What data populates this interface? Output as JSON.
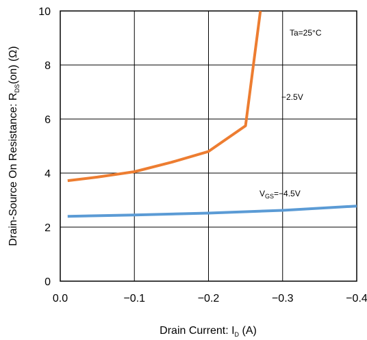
{
  "chart_data": {
    "type": "line",
    "xlabel": {
      "main": "Drain Current: I",
      "sub": "D",
      "unit": " (A)"
    },
    "ylabel": {
      "main": "Drain-Source On Resistance: R",
      "sub": "DS",
      "unit": "(on) (Ω)"
    },
    "xlim": [
      0,
      -0.4
    ],
    "ylim": [
      0,
      10
    ],
    "x_ticks": [
      0,
      -0.1,
      -0.2,
      -0.3,
      -0.4
    ],
    "x_tick_labels": [
      "0.0",
      "−0.1",
      "−0.2",
      "−0.3",
      "−0.4"
    ],
    "y_ticks": [
      0,
      2,
      4,
      6,
      8,
      10
    ],
    "y_tick_labels": [
      "0",
      "2",
      "4",
      "6",
      "8",
      "10"
    ],
    "grid": true,
    "annotations": {
      "temperature": "Ta=25°C",
      "vgs_low": "−2.5V",
      "vgs_high": {
        "main": "V",
        "sub": "GS",
        "rest": "=−4.5V"
      }
    },
    "series": [
      {
        "color": "#ed7d31",
        "x": [
          -0.01,
          -0.05,
          -0.1,
          -0.15,
          -0.2,
          -0.25,
          -0.27
        ],
        "y": [
          3.72,
          3.85,
          4.05,
          4.4,
          4.8,
          5.75,
          10.0
        ]
      },
      {
        "color": "#5b9bd5",
        "x": [
          -0.01,
          -0.1,
          -0.2,
          -0.3,
          -0.4
        ],
        "y": [
          2.4,
          2.45,
          2.52,
          2.62,
          2.78
        ]
      }
    ]
  }
}
